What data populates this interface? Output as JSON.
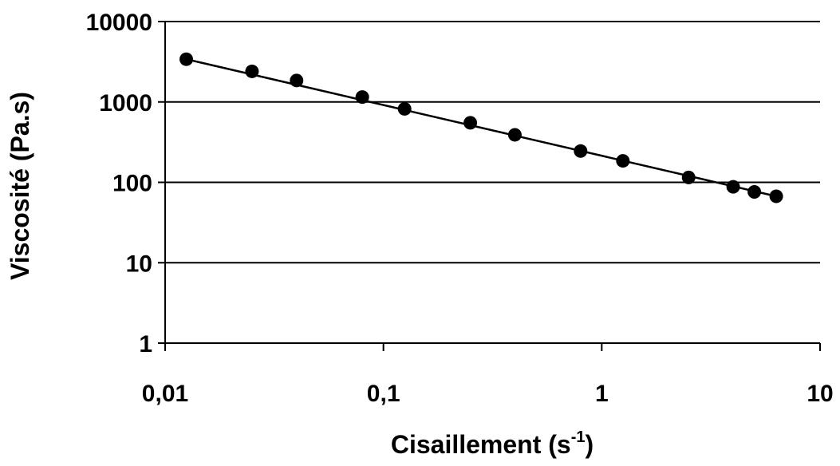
{
  "chart_data": {
    "type": "scatter",
    "xscale": "log",
    "yscale": "log",
    "xlabel": "Cisaillement (s",
    "xlabel_sup": "-1",
    "xlabel_end": ")",
    "ylabel": "Viscosité (Pa.s)",
    "xlim": [
      0.01,
      10
    ],
    "ylim": [
      1,
      10000
    ],
    "x_ticks": [
      0.01,
      0.1,
      1,
      10
    ],
    "x_tick_labels": [
      "0,01",
      "0,1",
      "1",
      "10"
    ],
    "y_ticks": [
      1,
      10,
      100,
      1000,
      10000
    ],
    "y_tick_labels": [
      "1",
      "10",
      "100",
      "1000",
      "10000"
    ],
    "grid": "horizontal",
    "legend": "none",
    "series": [
      {
        "marker": "filled-circle",
        "color": "#000000",
        "x": [
          0.0125,
          0.025,
          0.04,
          0.08,
          0.125,
          0.25,
          0.4,
          0.8,
          1.25,
          2.5,
          4,
          5,
          6.3
        ],
        "y": [
          3400,
          2400,
          1850,
          1150,
          820,
          550,
          390,
          245,
          185,
          115,
          88,
          76,
          67
        ]
      }
    ],
    "trendline": {
      "type": "power",
      "color": "#000000",
      "x": [
        0.0125,
        6.3
      ],
      "y": [
        3400,
        67
      ]
    }
  }
}
